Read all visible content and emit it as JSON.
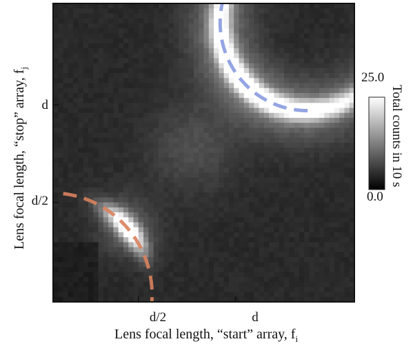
{
  "chart_data": {
    "type": "heatmap",
    "xlabel": "Lens focal length, “start” array, f",
    "xlabel_sub": "i",
    "ylabel": "Lens focal length, “stop” array, f",
    "ylabel_sub": "j",
    "x_ticks": [
      {
        "value": 0.5,
        "label": "d/2"
      },
      {
        "value": 1.0,
        "label": "d"
      }
    ],
    "y_ticks": [
      {
        "value": 0.5,
        "label": "d/2"
      },
      {
        "value": 1.0,
        "label": "d"
      }
    ],
    "xlim_d": [
      0.0,
      1.5
    ],
    "ylim_d": [
      0.0,
      1.5
    ],
    "colorbar": {
      "label": "Total counts in 10 s",
      "min": 0.0,
      "max": 25.0,
      "min_label": "0.0",
      "max_label": "25.0",
      "colormap": "gray"
    },
    "curves": [
      {
        "color": "#d9825e",
        "style": "dashed",
        "description": "lower-left branch"
      },
      {
        "color": "#8a9be0",
        "style": "dashed",
        "description": "upper-right branch"
      }
    ],
    "peak_counts": 25.0,
    "background_counts": 3.0
  }
}
